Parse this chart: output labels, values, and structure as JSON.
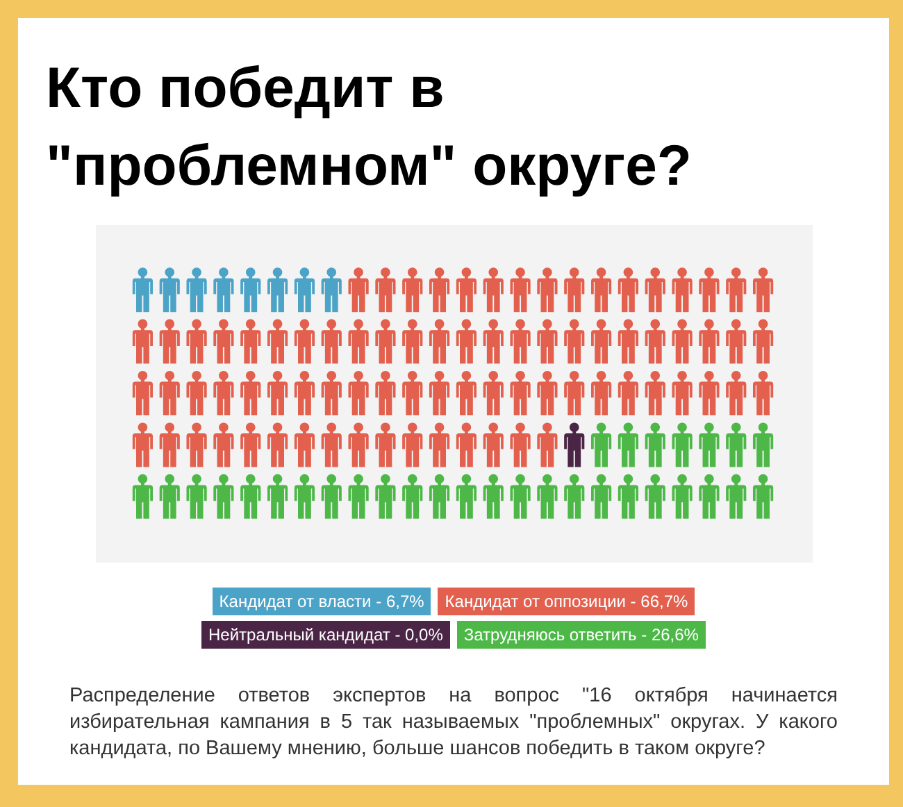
{
  "chart_data": {
    "type": "other",
    "title": "Кто победит в \"проблемном\" округе?",
    "categories": [
      "Кандидат от власти -",
      "Кандидат от оппозиции -",
      "Нейтральный кандидат -",
      "Затрудняюсь ответить -"
    ],
    "values": [
      6.7,
      66.7,
      0.0,
      26.6
    ],
    "value_labels": [
      "6,7%",
      "66,7%",
      "0,0%",
      "26,6%"
    ],
    "colors": [
      "#4ba3c7",
      "#e2604d",
      "#4a2545",
      "#4db848"
    ],
    "annotations": [
      "Распределение ответов экспертов на вопрос \"16 октября начинается избирательная кампания в 5 так называемых \"проблемных\" округах. У какого кандидата, по Вашему мнению, больше шансов победить в таком округе?"
    ]
  }
}
